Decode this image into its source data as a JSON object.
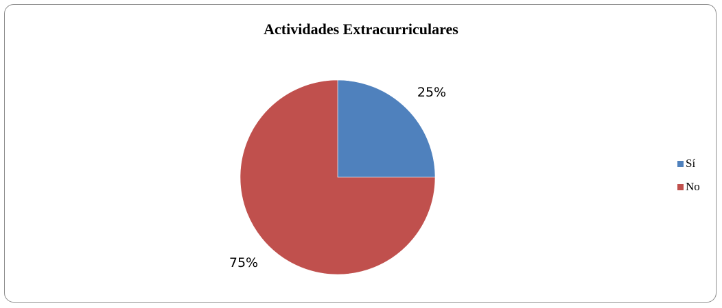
{
  "chart_data": {
    "type": "pie",
    "title": "Actividades Extracurriculares",
    "categories": [
      "Sí",
      "No"
    ],
    "values": [
      25,
      75
    ],
    "data_labels": [
      "25%",
      "75%"
    ],
    "colors": [
      "#4F81BD",
      "#C0504D"
    ],
    "legend_position": "right",
    "start_angle_deg": 0,
    "direction": "clockwise"
  }
}
